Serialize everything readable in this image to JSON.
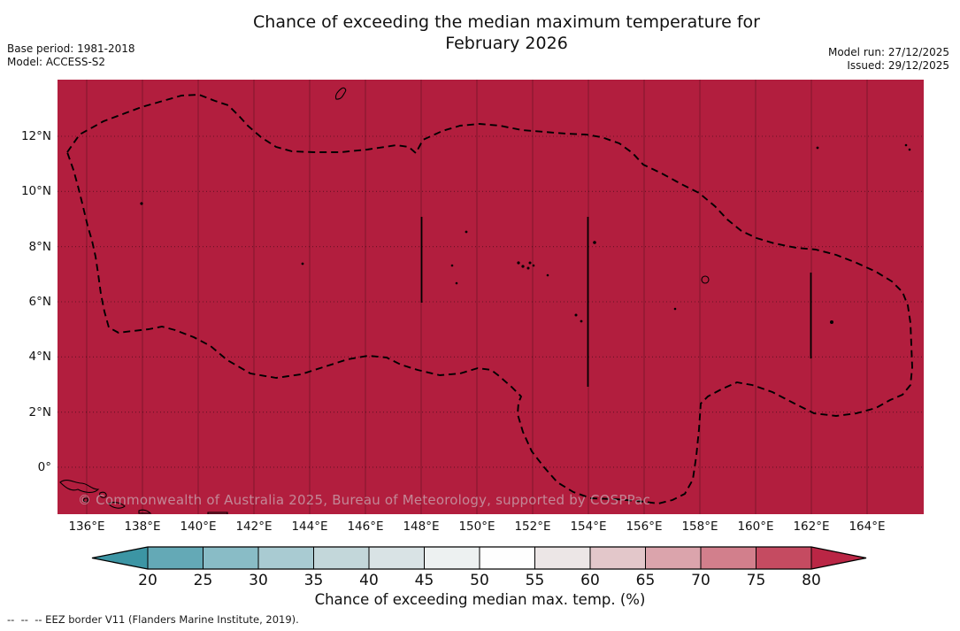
{
  "title": {
    "line1": "Chance of exceeding the median maximum temperature for",
    "line2": "February 2026"
  },
  "meta": {
    "base_period": "Base period: 1981-2018",
    "model": "Model: ACCESS-S2",
    "model_run": "Model run: 27/12/2025",
    "issued": "Issued: 29/12/2025"
  },
  "map": {
    "fill_color": "#b21e3e",
    "eez_border_color": "#000000",
    "lat_ticks": [
      "12°N",
      "10°N",
      "8°N",
      "6°N",
      "4°N",
      "2°N",
      "0°"
    ],
    "lon_ticks": [
      "136°E",
      "138°E",
      "140°E",
      "142°E",
      "144°E",
      "146°E",
      "148°E",
      "150°E",
      "152°E",
      "154°E",
      "156°E",
      "158°E",
      "160°E",
      "162°E",
      "164°E"
    ],
    "watermark": "© Commonwealth of Australia 2025, Bureau of Meteorology, supported by COSPPac"
  },
  "colorbar": {
    "label": "Chance of exceeding median max. temp. (%)",
    "ticks": [
      "20",
      "25",
      "30",
      "35",
      "40",
      "45",
      "50",
      "55",
      "60",
      "65",
      "70",
      "75",
      "80"
    ],
    "under_color": "#3c95a4",
    "over_color": "#ba2645",
    "segment_colors": [
      "#64a9b6",
      "#89bcc6",
      "#a9cbd2",
      "#c3d7da",
      "#d9e3e5",
      "#edf1f1",
      "#fefefe",
      "#ece6e6",
      "#e3c7ca",
      "#dba4ac",
      "#d27f8c",
      "#c54b61"
    ]
  },
  "footer": {
    "eez_note": "--  --  -- EEZ border V11 (Flanders Marine Institute, 2019)."
  },
  "chart_data": {
    "type": "heatmap",
    "title": "Chance of exceeding the median maximum temperature for February 2026",
    "base_period": "1981-2018",
    "model": "ACCESS-S2",
    "model_run": "27/12/2025",
    "issued": "29/12/2025",
    "xlabel_ticks_lon_e": [
      136,
      138,
      140,
      142,
      144,
      146,
      148,
      150,
      152,
      154,
      156,
      158,
      160,
      162,
      164
    ],
    "ylabel_ticks_lat_n": [
      12,
      10,
      8,
      6,
      4,
      2,
      0
    ],
    "lon_range_deg_e": [
      135,
      166
    ],
    "lat_range_deg_n": [
      -1.7,
      14
    ],
    "colorbar_label": "Chance of exceeding median max. temp. (%)",
    "colorbar_ticks_percent": [
      20,
      25,
      30,
      35,
      40,
      45,
      50,
      55,
      60,
      65,
      70,
      75,
      80
    ],
    "colorbar_range_percent": [
      20,
      80
    ],
    "field_summary": "Entire mapped EEZ region is shaded in the highest category (>80% chance of exceeding median maximum temperature)",
    "field_uniform_value_percent": ">80",
    "overlay": "Dashed EEZ border V11 (Flanders Marine Institute, 2019); grid every 2° lat/lon"
  }
}
